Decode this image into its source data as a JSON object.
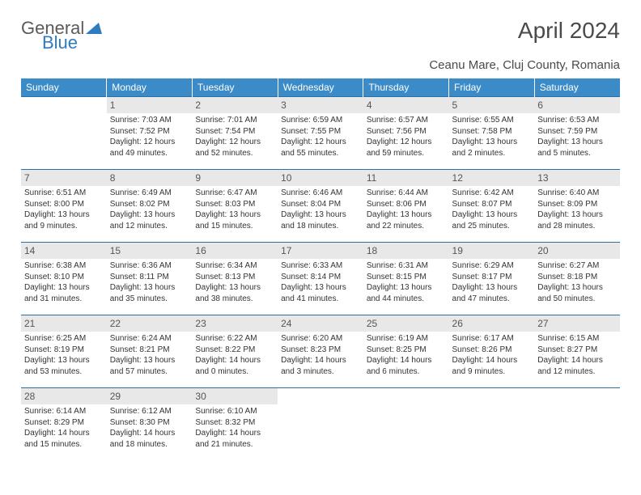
{
  "logo": {
    "text_general": "General",
    "text_blue": "Blue"
  },
  "title": "April 2024",
  "location": "Ceanu Mare, Cluj County, Romania",
  "colors": {
    "header_bg": "#3b8bc8",
    "header_fg": "#ffffff",
    "daynum_bg": "#e8e8e8",
    "daynum_fg": "#555555",
    "rule": "#2f6fa0",
    "text": "#333333",
    "logo_gray": "#5a5a5a",
    "logo_blue": "#2f7bbf"
  },
  "weekdays": [
    "Sunday",
    "Monday",
    "Tuesday",
    "Wednesday",
    "Thursday",
    "Friday",
    "Saturday"
  ],
  "weeks": [
    [
      {
        "empty": true
      },
      {
        "day": "1",
        "sunrise": "Sunrise: 7:03 AM",
        "sunset": "Sunset: 7:52 PM",
        "daylight1": "Daylight: 12 hours",
        "daylight2": "and 49 minutes."
      },
      {
        "day": "2",
        "sunrise": "Sunrise: 7:01 AM",
        "sunset": "Sunset: 7:54 PM",
        "daylight1": "Daylight: 12 hours",
        "daylight2": "and 52 minutes."
      },
      {
        "day": "3",
        "sunrise": "Sunrise: 6:59 AM",
        "sunset": "Sunset: 7:55 PM",
        "daylight1": "Daylight: 12 hours",
        "daylight2": "and 55 minutes."
      },
      {
        "day": "4",
        "sunrise": "Sunrise: 6:57 AM",
        "sunset": "Sunset: 7:56 PM",
        "daylight1": "Daylight: 12 hours",
        "daylight2": "and 59 minutes."
      },
      {
        "day": "5",
        "sunrise": "Sunrise: 6:55 AM",
        "sunset": "Sunset: 7:58 PM",
        "daylight1": "Daylight: 13 hours",
        "daylight2": "and 2 minutes."
      },
      {
        "day": "6",
        "sunrise": "Sunrise: 6:53 AM",
        "sunset": "Sunset: 7:59 PM",
        "daylight1": "Daylight: 13 hours",
        "daylight2": "and 5 minutes."
      }
    ],
    [
      {
        "day": "7",
        "sunrise": "Sunrise: 6:51 AM",
        "sunset": "Sunset: 8:00 PM",
        "daylight1": "Daylight: 13 hours",
        "daylight2": "and 9 minutes."
      },
      {
        "day": "8",
        "sunrise": "Sunrise: 6:49 AM",
        "sunset": "Sunset: 8:02 PM",
        "daylight1": "Daylight: 13 hours",
        "daylight2": "and 12 minutes."
      },
      {
        "day": "9",
        "sunrise": "Sunrise: 6:47 AM",
        "sunset": "Sunset: 8:03 PM",
        "daylight1": "Daylight: 13 hours",
        "daylight2": "and 15 minutes."
      },
      {
        "day": "10",
        "sunrise": "Sunrise: 6:46 AM",
        "sunset": "Sunset: 8:04 PM",
        "daylight1": "Daylight: 13 hours",
        "daylight2": "and 18 minutes."
      },
      {
        "day": "11",
        "sunrise": "Sunrise: 6:44 AM",
        "sunset": "Sunset: 8:06 PM",
        "daylight1": "Daylight: 13 hours",
        "daylight2": "and 22 minutes."
      },
      {
        "day": "12",
        "sunrise": "Sunrise: 6:42 AM",
        "sunset": "Sunset: 8:07 PM",
        "daylight1": "Daylight: 13 hours",
        "daylight2": "and 25 minutes."
      },
      {
        "day": "13",
        "sunrise": "Sunrise: 6:40 AM",
        "sunset": "Sunset: 8:09 PM",
        "daylight1": "Daylight: 13 hours",
        "daylight2": "and 28 minutes."
      }
    ],
    [
      {
        "day": "14",
        "sunrise": "Sunrise: 6:38 AM",
        "sunset": "Sunset: 8:10 PM",
        "daylight1": "Daylight: 13 hours",
        "daylight2": "and 31 minutes."
      },
      {
        "day": "15",
        "sunrise": "Sunrise: 6:36 AM",
        "sunset": "Sunset: 8:11 PM",
        "daylight1": "Daylight: 13 hours",
        "daylight2": "and 35 minutes."
      },
      {
        "day": "16",
        "sunrise": "Sunrise: 6:34 AM",
        "sunset": "Sunset: 8:13 PM",
        "daylight1": "Daylight: 13 hours",
        "daylight2": "and 38 minutes."
      },
      {
        "day": "17",
        "sunrise": "Sunrise: 6:33 AM",
        "sunset": "Sunset: 8:14 PM",
        "daylight1": "Daylight: 13 hours",
        "daylight2": "and 41 minutes."
      },
      {
        "day": "18",
        "sunrise": "Sunrise: 6:31 AM",
        "sunset": "Sunset: 8:15 PM",
        "daylight1": "Daylight: 13 hours",
        "daylight2": "and 44 minutes."
      },
      {
        "day": "19",
        "sunrise": "Sunrise: 6:29 AM",
        "sunset": "Sunset: 8:17 PM",
        "daylight1": "Daylight: 13 hours",
        "daylight2": "and 47 minutes."
      },
      {
        "day": "20",
        "sunrise": "Sunrise: 6:27 AM",
        "sunset": "Sunset: 8:18 PM",
        "daylight1": "Daylight: 13 hours",
        "daylight2": "and 50 minutes."
      }
    ],
    [
      {
        "day": "21",
        "sunrise": "Sunrise: 6:25 AM",
        "sunset": "Sunset: 8:19 PM",
        "daylight1": "Daylight: 13 hours",
        "daylight2": "and 53 minutes."
      },
      {
        "day": "22",
        "sunrise": "Sunrise: 6:24 AM",
        "sunset": "Sunset: 8:21 PM",
        "daylight1": "Daylight: 13 hours",
        "daylight2": "and 57 minutes."
      },
      {
        "day": "23",
        "sunrise": "Sunrise: 6:22 AM",
        "sunset": "Sunset: 8:22 PM",
        "daylight1": "Daylight: 14 hours",
        "daylight2": "and 0 minutes."
      },
      {
        "day": "24",
        "sunrise": "Sunrise: 6:20 AM",
        "sunset": "Sunset: 8:23 PM",
        "daylight1": "Daylight: 14 hours",
        "daylight2": "and 3 minutes."
      },
      {
        "day": "25",
        "sunrise": "Sunrise: 6:19 AM",
        "sunset": "Sunset: 8:25 PM",
        "daylight1": "Daylight: 14 hours",
        "daylight2": "and 6 minutes."
      },
      {
        "day": "26",
        "sunrise": "Sunrise: 6:17 AM",
        "sunset": "Sunset: 8:26 PM",
        "daylight1": "Daylight: 14 hours",
        "daylight2": "and 9 minutes."
      },
      {
        "day": "27",
        "sunrise": "Sunrise: 6:15 AM",
        "sunset": "Sunset: 8:27 PM",
        "daylight1": "Daylight: 14 hours",
        "daylight2": "and 12 minutes."
      }
    ],
    [
      {
        "day": "28",
        "sunrise": "Sunrise: 6:14 AM",
        "sunset": "Sunset: 8:29 PM",
        "daylight1": "Daylight: 14 hours",
        "daylight2": "and 15 minutes."
      },
      {
        "day": "29",
        "sunrise": "Sunrise: 6:12 AM",
        "sunset": "Sunset: 8:30 PM",
        "daylight1": "Daylight: 14 hours",
        "daylight2": "and 18 minutes."
      },
      {
        "day": "30",
        "sunrise": "Sunrise: 6:10 AM",
        "sunset": "Sunset: 8:32 PM",
        "daylight1": "Daylight: 14 hours",
        "daylight2": "and 21 minutes."
      },
      {
        "empty": true
      },
      {
        "empty": true
      },
      {
        "empty": true
      },
      {
        "empty": true
      }
    ]
  ]
}
